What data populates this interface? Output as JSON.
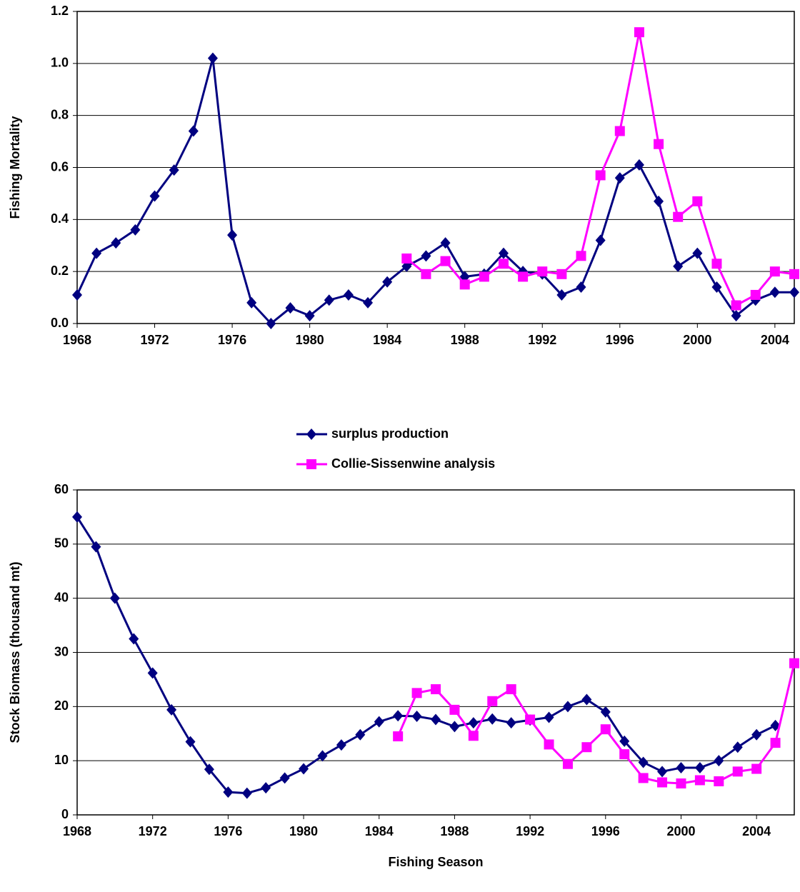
{
  "chart_data": [
    {
      "type": "line",
      "ylabel": "Fishing Mortality",
      "xlim": [
        1968,
        2005
      ],
      "xticks": [
        1968,
        1972,
        1976,
        1980,
        1984,
        1988,
        1992,
        1996,
        2000,
        2004
      ],
      "ylim": [
        0,
        1.2
      ],
      "yticks": [
        {
          "value": 0,
          "label": "0.0"
        },
        0.2,
        0.4,
        0.6,
        0.8,
        {
          "value": 1,
          "label": "1.0"
        },
        1.2
      ],
      "grid": true,
      "series": [
        {
          "color": "#000080",
          "marker": "diamond",
          "x": [
            1968,
            1969,
            1970,
            1971,
            1972,
            1973,
            1974,
            1975,
            1976,
            1977,
            1978,
            1979,
            1980,
            1981,
            1982,
            1983,
            1984,
            1985,
            1986,
            1987,
            1988,
            1989,
            1990,
            1991,
            1992,
            1993,
            1994,
            1995,
            1996,
            1997,
            1998,
            1999,
            2000,
            2001,
            2002,
            2003,
            2004,
            2005
          ],
          "values": [
            0.11,
            0.27,
            0.31,
            0.36,
            0.49,
            0.59,
            0.74,
            1.02,
            0.34,
            0.08,
            0.0,
            0.06,
            0.03,
            0.09,
            0.11,
            0.08,
            0.16,
            0.22,
            0.26,
            0.31,
            0.18,
            0.19,
            0.27,
            0.2,
            0.19,
            0.11,
            0.14,
            0.32,
            0.56,
            0.61,
            0.47,
            0.22,
            0.27,
            0.14,
            0.03,
            0.09,
            0.12,
            0.12
          ]
        },
        {
          "color": "#ff00ff",
          "marker": "square",
          "x": [
            1985,
            1986,
            1987,
            1988,
            1989,
            1990,
            1991,
            1992,
            1993,
            1994,
            1995,
            1996,
            1997,
            1998,
            1999,
            2000,
            2001,
            2002,
            2003,
            2004,
            2005
          ],
          "values": [
            0.25,
            0.19,
            0.24,
            0.15,
            0.18,
            0.23,
            0.18,
            0.2,
            0.19,
            0.26,
            0.57,
            0.74,
            1.12,
            0.69,
            0.41,
            0.47,
            0.23,
            0.07,
            0.11,
            0.2,
            0.19
          ]
        }
      ]
    },
    {
      "type": "line",
      "xlabel": "Fishing Season",
      "ylabel": "Stock Biomass (thousand mt)",
      "xlim": [
        1968,
        2006
      ],
      "xticks": [
        1968,
        1972,
        1976,
        1980,
        1984,
        1988,
        1992,
        1996,
        2000,
        2004
      ],
      "ylim": [
        0,
        60
      ],
      "yticks": [
        0,
        10,
        20,
        30,
        40,
        50,
        60
      ],
      "grid": true,
      "legend": "top",
      "series": [
        {
          "name": "surplus production",
          "color": "#000080",
          "marker": "diamond",
          "x": [
            1968,
            1969,
            1970,
            1971,
            1972,
            1973,
            1974,
            1975,
            1976,
            1977,
            1978,
            1979,
            1980,
            1981,
            1982,
            1983,
            1984,
            1985,
            1986,
            1987,
            1988,
            1989,
            1990,
            1991,
            1992,
            1993,
            1994,
            1995,
            1996,
            1997,
            1998,
            1999,
            2000,
            2001,
            2002,
            2003,
            2004,
            2005
          ],
          "values": [
            55,
            49.5,
            40,
            32.5,
            26.2,
            19.4,
            13.5,
            8.4,
            4.2,
            4.0,
            5.0,
            6.8,
            8.5,
            10.9,
            12.9,
            14.8,
            17.2,
            18.3,
            18.2,
            17.6,
            16.3,
            17.0,
            17.7,
            17.0,
            17.5,
            18.0,
            20.0,
            21.3,
            19.0,
            13.6,
            9.7,
            8.0,
            8.7,
            8.7,
            10.0,
            12.5,
            14.8,
            16.5
          ]
        },
        {
          "name": "Collie-Sissenwine analysis",
          "color": "#ff00ff",
          "marker": "square",
          "x": [
            1985,
            1986,
            1987,
            1988,
            1989,
            1990,
            1991,
            1992,
            1993,
            1994,
            1995,
            1996,
            1997,
            1998,
            1999,
            2000,
            2001,
            2002,
            2003,
            2004,
            2005,
            2006
          ],
          "values": [
            14.5,
            22.5,
            23.2,
            19.4,
            14.6,
            21.0,
            23.2,
            17.6,
            13.0,
            9.4,
            12.5,
            15.8,
            11.2,
            6.8,
            6.0,
            5.8,
            6.4,
            6.2,
            8.0,
            8.5,
            13.3,
            28.0
          ]
        }
      ]
    }
  ]
}
